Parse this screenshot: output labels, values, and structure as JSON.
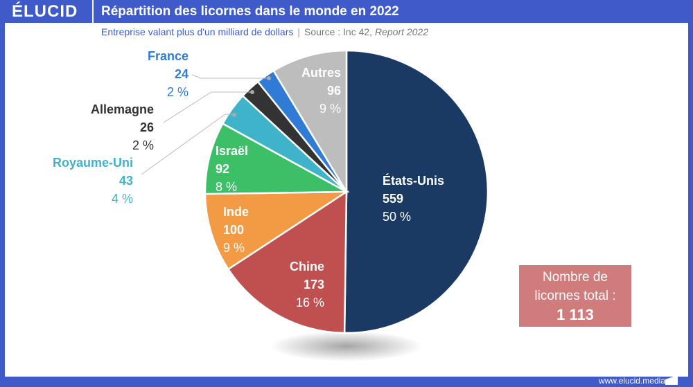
{
  "header": {
    "logo": "ÉLUCID",
    "title": "Répartition des licornes dans le monde en 2022"
  },
  "subtitle": {
    "text": "Entreprise valant plus d'un milliard de dollars",
    "separator": "|",
    "source": "Source : Inc 42,",
    "report": "Report 2022"
  },
  "chart_data": {
    "type": "pie",
    "title": "Répartition des licornes dans le monde en 2022",
    "start": "top",
    "direction": "clockwise",
    "slices": [
      {
        "label": "États-Unis",
        "value": 559,
        "pct": "50 %",
        "color": "#1b3a63"
      },
      {
        "label": "Chine",
        "value": 173,
        "pct": "16 %",
        "color": "#c0504f"
      },
      {
        "label": "Inde",
        "value": 100,
        "pct": "9 %",
        "color": "#f39a45"
      },
      {
        "label": "Israël",
        "value": 92,
        "pct": "8 %",
        "color": "#3dbf68"
      },
      {
        "label": "Royaume-Uni",
        "value": 43,
        "pct": "4 %",
        "color": "#3fb3c9"
      },
      {
        "label": "Allemagne",
        "value": 26,
        "pct": "2 %",
        "color": "#333333"
      },
      {
        "label": "France",
        "value": 24,
        "pct": "2 %",
        "color": "#2f7bd6"
      },
      {
        "label": "Autres",
        "value": 96,
        "pct": "9 %",
        "color": "#bdbdbd"
      }
    ]
  },
  "total": {
    "line1": "Nombre de",
    "line2": "licornes total :",
    "value": "1 113"
  },
  "footer": {
    "url": "www.elucid.media"
  }
}
